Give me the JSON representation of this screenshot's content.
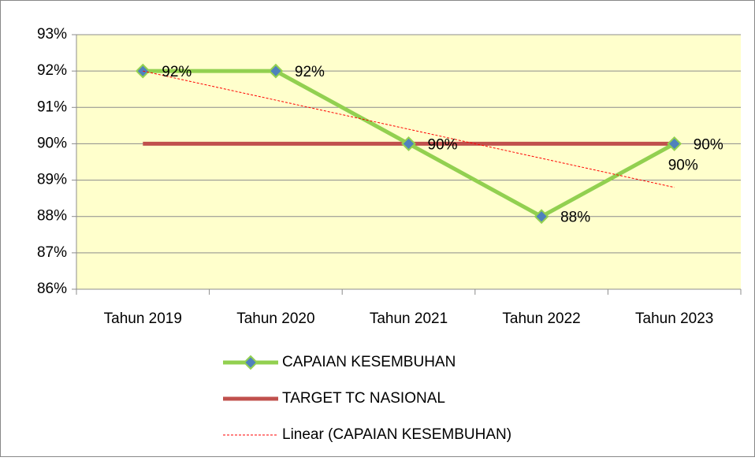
{
  "chart_data": {
    "type": "line",
    "categories": [
      "Tahun 2019",
      "Tahun 2020",
      "Tahun 2021",
      "Tahun 2022",
      "Tahun 2023"
    ],
    "series": [
      {
        "name": "CAPAIAN KESEMBUHAN",
        "color": "#92d050",
        "style": "solid",
        "marker": "diamond",
        "marker_color": "#4f81bd",
        "values": [
          92,
          92,
          90,
          88,
          90
        ],
        "value_labels": [
          "92%",
          "92%",
          "90%",
          "88%",
          "90%"
        ]
      },
      {
        "name": "TARGET TC NASIONAL",
        "color": "#c0504d",
        "style": "solid",
        "values": [
          90,
          90,
          90,
          90,
          90
        ],
        "value_labels": [
          null,
          null,
          null,
          null,
          "90%"
        ]
      },
      {
        "name": "Linear (CAPAIAN KESEMBUHAN)",
        "color": "#ff0000",
        "style": "dashed",
        "values": [
          92,
          91.2,
          90.4,
          89.6,
          88.8
        ]
      }
    ],
    "ylim": [
      86,
      93
    ],
    "yticks": [
      {
        "value": 86,
        "label": "86%"
      },
      {
        "value": 87,
        "label": "87%"
      },
      {
        "value": 88,
        "label": "88%"
      },
      {
        "value": 89,
        "label": "89%"
      },
      {
        "value": 90,
        "label": "90%"
      },
      {
        "value": 91,
        "label": "91%"
      },
      {
        "value": 92,
        "label": "92%"
      },
      {
        "value": 93,
        "label": "93%"
      }
    ],
    "grid": true,
    "legend": "bottom",
    "background": "#ffffcc"
  }
}
